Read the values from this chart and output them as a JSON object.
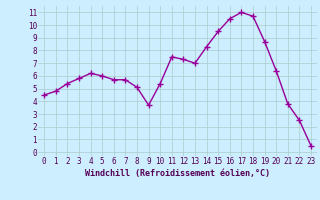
{
  "x": [
    0,
    1,
    2,
    3,
    4,
    5,
    6,
    7,
    8,
    9,
    10,
    11,
    12,
    13,
    14,
    15,
    16,
    17,
    18,
    19,
    20,
    21,
    22,
    23
  ],
  "y": [
    4.5,
    4.8,
    5.4,
    5.8,
    6.2,
    6.0,
    5.7,
    5.7,
    5.1,
    3.7,
    5.4,
    7.5,
    7.3,
    7.0,
    8.3,
    9.5,
    10.5,
    11.0,
    10.7,
    8.7,
    6.4,
    3.8,
    2.5,
    0.5
  ],
  "line_color": "#990099",
  "marker_color": "#990099",
  "bg_color": "#cceeff",
  "grid_color": "#aacccc",
  "xlabel": "Windchill (Refroidissement éolien,°C)",
  "ylabel_ticks": [
    0,
    1,
    2,
    3,
    4,
    5,
    6,
    7,
    8,
    9,
    10,
    11
  ],
  "xlabel_ticks": [
    0,
    1,
    2,
    3,
    4,
    5,
    6,
    7,
    8,
    9,
    10,
    11,
    12,
    13,
    14,
    15,
    16,
    17,
    18,
    19,
    20,
    21,
    22,
    23
  ],
  "xlabel_labels": [
    "0",
    "1",
    "2",
    "3",
    "4",
    "5",
    "6",
    "7",
    "8",
    "9",
    "10",
    "11",
    "12",
    "13",
    "14",
    "15",
    "16",
    "17",
    "18",
    "19",
    "20",
    "21",
    "22",
    "23"
  ],
  "ylim": [
    -0.3,
    11.5
  ],
  "xlim": [
    -0.5,
    23.5
  ],
  "label_fontsize": 6,
  "tick_fontsize": 5.5,
  "line_width": 1.0,
  "marker_size": 4,
  "marker_style": "+"
}
